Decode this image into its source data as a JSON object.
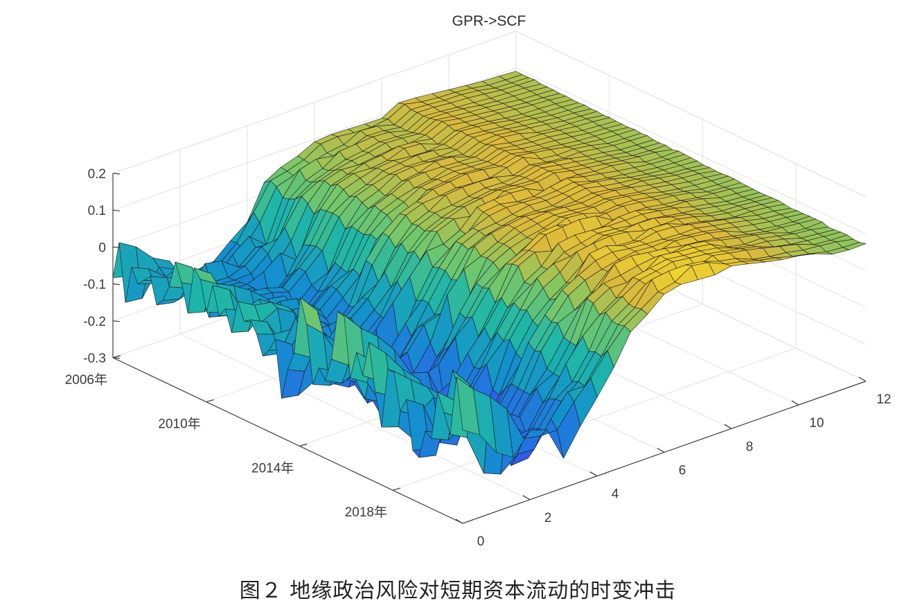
{
  "chart_data": {
    "type": "surface",
    "title": "GPR->SCF",
    "caption": "图２ 地缘政治风险对短期资本流动的时变冲击",
    "z_ticks": [
      "0.2",
      "0.1",
      "0",
      "-0.1",
      "-0.2",
      "-0.3"
    ],
    "z_range": [
      -0.3,
      0.2
    ],
    "time_ticks": [
      "2006年",
      "2010年",
      "2014年",
      "2018年"
    ],
    "horizon_ticks": [
      "0",
      "2",
      "4",
      "6",
      "8",
      "10",
      "12"
    ],
    "horizon_range": [
      0,
      12
    ],
    "time_range": [
      2006,
      2021
    ],
    "grid": true,
    "colormap": "parula",
    "series_note_visible": false,
    "horizon_mean_response": [
      -0.04,
      -0.1,
      -0.17,
      -0.18,
      -0.05,
      0.07,
      0.13,
      0.15,
      0.14,
      0.12,
      0.1,
      0.08,
      0.07
    ]
  }
}
